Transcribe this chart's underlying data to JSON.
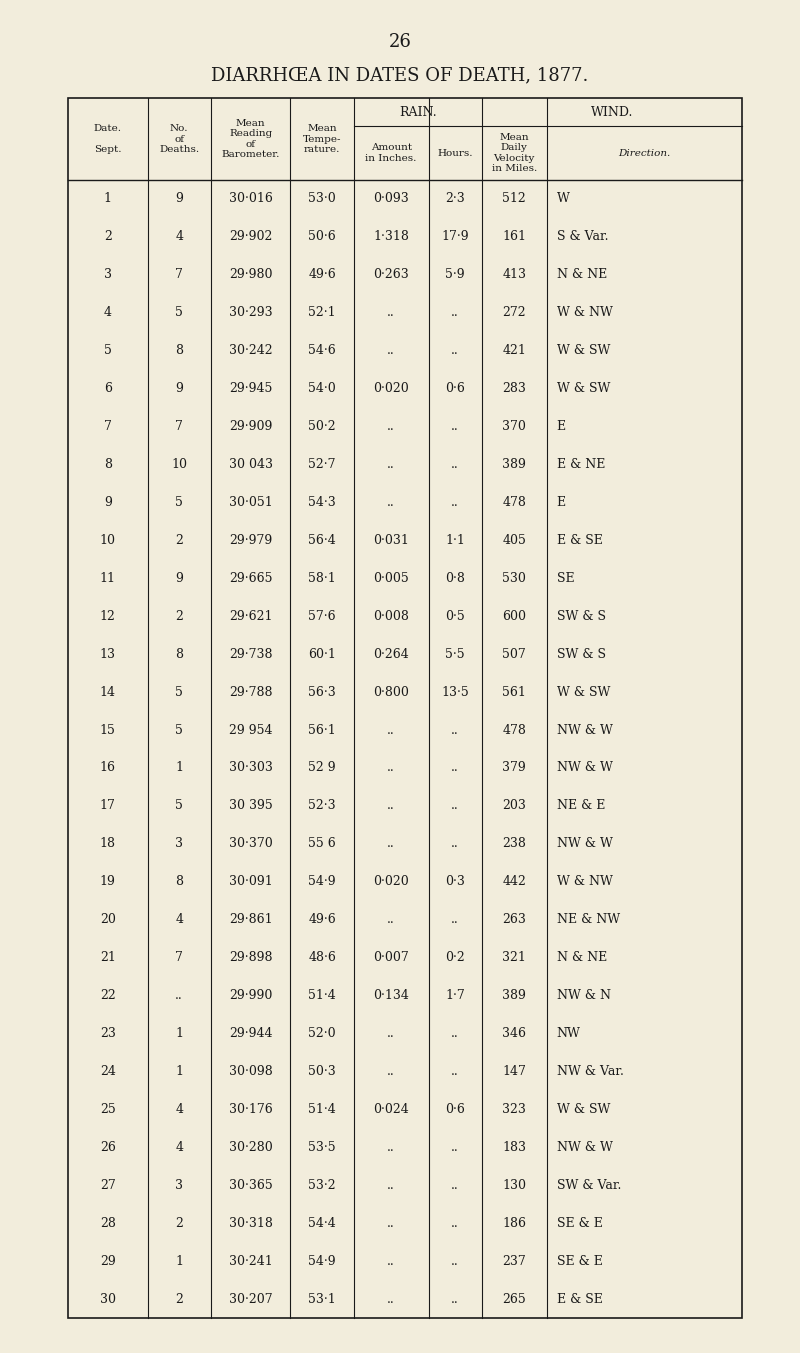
{
  "page_number": "26",
  "title": "DIARRHŒA IN DATES OF DEATH, 1877.",
  "bg_color": "#f2eddc",
  "text_color": "#1a1a1a",
  "col_headers_rain": "RAIN.",
  "col_headers_wind": "WIND.",
  "col_header_texts": [
    "Date.\n \nSept.",
    "No.\nof\nDeaths.",
    "Mean\nReading\nof\nBarometer.",
    "Mean\nTempe-\nrature.",
    "Amount\nin Inches.",
    "Hours.",
    "Mean\nDaily\nVelocity\nin Miles.",
    "Direction."
  ],
  "rows": [
    [
      "1",
      "9",
      "30·016",
      "53·0",
      "0·093",
      "2·3",
      "512",
      "W"
    ],
    [
      "2",
      "4",
      "29·902",
      "50·6",
      "1·318",
      "17·9",
      "161",
      "S & Var."
    ],
    [
      "3",
      "7",
      "29·980",
      "49·6",
      "0·263",
      "5·9",
      "413",
      "N & NE"
    ],
    [
      "4",
      "5",
      "30·293",
      "52·1",
      "..",
      "..",
      "272",
      "W & NW"
    ],
    [
      "5",
      "8",
      "30·242",
      "54·6",
      "..",
      "..",
      "421",
      "W & SW"
    ],
    [
      "6",
      "9",
      "29·945",
      "54·0",
      "0·020",
      "0·6",
      "283",
      "W & SW"
    ],
    [
      "7",
      "7",
      "29·909",
      "50·2",
      "..",
      "..",
      "370",
      "E"
    ],
    [
      "8",
      "10",
      "30 043",
      "52·7",
      "..",
      "..",
      "389",
      "E & NE"
    ],
    [
      "9",
      "5",
      "30·051",
      "54·3",
      "..",
      "..",
      "478",
      "E"
    ],
    [
      "10",
      "2",
      "29·979",
      "56·4",
      "0·031",
      "1·1",
      "405",
      "E & SE"
    ],
    [
      "11",
      "9",
      "29·665",
      "58·1",
      "0·005",
      "0·8",
      "530",
      "SE"
    ],
    [
      "12",
      "2",
      "29·621",
      "57·6",
      "0·008",
      "0·5",
      "600",
      "SW & S"
    ],
    [
      "13",
      "8",
      "29·738",
      "60·1",
      "0·264",
      "5·5",
      "507",
      "SW & S"
    ],
    [
      "14",
      "5",
      "29·788",
      "56·3",
      "0·800",
      "13·5",
      "561",
      "W & SW"
    ],
    [
      "15",
      "5",
      "29 954",
      "56·1",
      "..",
      "..",
      "478",
      "NW & W"
    ],
    [
      "16",
      "1",
      "30·303",
      "52 9",
      "..",
      "..",
      "379",
      "NW & W"
    ],
    [
      "17",
      "5",
      "30 395",
      "52·3",
      "..",
      "..",
      "203",
      "NE & E"
    ],
    [
      "18",
      "3",
      "30·370",
      "55 6",
      "..",
      "..",
      "238",
      "NW & W"
    ],
    [
      "19",
      "8",
      "30·091",
      "54·9",
      "0·020",
      "0·3",
      "442",
      "W & NW"
    ],
    [
      "20",
      "4",
      "29·861",
      "49·6",
      "..",
      "..",
      "263",
      "NE & NW"
    ],
    [
      "21",
      "7",
      "29·898",
      "48·6",
      "0·007",
      "0·2",
      "321",
      "N & NE"
    ],
    [
      "22",
      "..",
      "29·990",
      "51·4",
      "0·134",
      "1·7",
      "389",
      "NW & N"
    ],
    [
      "23",
      "1",
      "29·944",
      "52·0",
      "..",
      "..",
      "346",
      "NW"
    ],
    [
      "24",
      "1",
      "30·098",
      "50·3",
      "..",
      "..",
      "147",
      "NW & Var."
    ],
    [
      "25",
      "4",
      "30·176",
      "51·4",
      "0·024",
      "0·6",
      "323",
      "W & SW"
    ],
    [
      "26",
      "4",
      "30·280",
      "53·5",
      "..",
      "..",
      "183",
      "NW & W"
    ],
    [
      "27",
      "3",
      "30·365",
      "53·2",
      "..",
      "..",
      "130",
      "SW & Var."
    ],
    [
      "28",
      "2",
      "30·318",
      "54·4",
      "..",
      "..",
      "186",
      "SE & E"
    ],
    [
      "29",
      "1",
      "30·241",
      "54·9",
      "..",
      "..",
      "237",
      "SE & E"
    ],
    [
      "30",
      "2",
      "30·207",
      "53·1",
      "..",
      "..",
      "265",
      "E & SE"
    ]
  ]
}
